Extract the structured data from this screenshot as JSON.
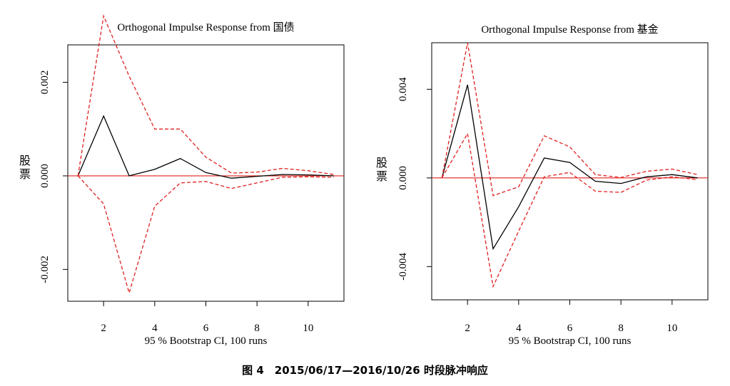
{
  "caption": "图 4　2015/06/17—2016/10/26 时段脉冲响应",
  "chart_data": [
    {
      "type": "line",
      "title": "Orthogonal Impulse Response from 国债",
      "xlabel": "95 % Bootstrap CI,  100 runs",
      "ylabel": "股票",
      "x": [
        1,
        2,
        3,
        4,
        5,
        6,
        7,
        8,
        9,
        10,
        11
      ],
      "xlim": [
        1,
        11
      ],
      "xticks": [
        2,
        4,
        6,
        8,
        10
      ],
      "ylim": [
        -0.00268,
        0.0028
      ],
      "yticks": [
        -0.002,
        0.0,
        0.002
      ],
      "ytick_labels": [
        "-0.002",
        "0.000",
        "0.002"
      ],
      "hline": 0,
      "series": [
        {
          "role": "irf",
          "color": "#000000",
          "style": "solid",
          "values": [
            0,
            0.00128,
            0,
            0.00014,
            0.00037,
            7e-05,
            -5e-05,
            -1e-05,
            3e-05,
            2e-05,
            0
          ]
        },
        {
          "role": "upper",
          "color": "#e02020",
          "style": "dashed",
          "values": [
            0,
            0.00342,
            0.00213,
            0.001,
            0.001,
            0.0004,
            6e-05,
            8e-05,
            0.00016,
            0.00011,
            3e-05
          ]
        },
        {
          "role": "lower",
          "color": "#e02020",
          "style": "dashed",
          "values": [
            0,
            -0.0006,
            -0.0025,
            -0.00065,
            -0.00015,
            -0.00012,
            -0.00027,
            -0.00015,
            -3e-05,
            -2e-05,
            -3e-05
          ]
        }
      ]
    },
    {
      "type": "line",
      "title": "Orthogonal Impulse Response from 基金",
      "xlabel": "95 % Bootstrap CI,  100 runs",
      "ylabel": "股票",
      "x": [
        1,
        2,
        3,
        4,
        5,
        6,
        7,
        8,
        9,
        10,
        11
      ],
      "xlim": [
        1,
        11
      ],
      "xticks": [
        2,
        4,
        6,
        8,
        10
      ],
      "ylim": [
        -0.0055,
        0.0061
      ],
      "yticks": [
        -0.004,
        0.0,
        0.004
      ],
      "ytick_labels": [
        "-0.004",
        "0.000",
        "0.004"
      ],
      "hline": 0,
      "series": [
        {
          "role": "irf",
          "color": "#000000",
          "style": "solid",
          "values": [
            0,
            0.0042,
            -0.0032,
            -0.0013,
            0.0009,
            0.0007,
            -0.00015,
            -0.00025,
            5e-05,
            0.00015,
            0
          ]
        },
        {
          "role": "upper",
          "color": "#e02020",
          "style": "dashed",
          "values": [
            0,
            0.0061,
            -0.0008,
            -0.0004,
            0.0019,
            0.0014,
            0.00015,
            2e-05,
            0.0003,
            0.0004,
            0.00015
          ]
        },
        {
          "role": "lower",
          "color": "#e02020",
          "style": "dashed",
          "values": [
            0,
            0.002,
            -0.0049,
            -0.0024,
            5e-05,
            0.00025,
            -0.0006,
            -0.00065,
            -0.0001,
            5e-05,
            -8e-05
          ]
        }
      ]
    }
  ]
}
